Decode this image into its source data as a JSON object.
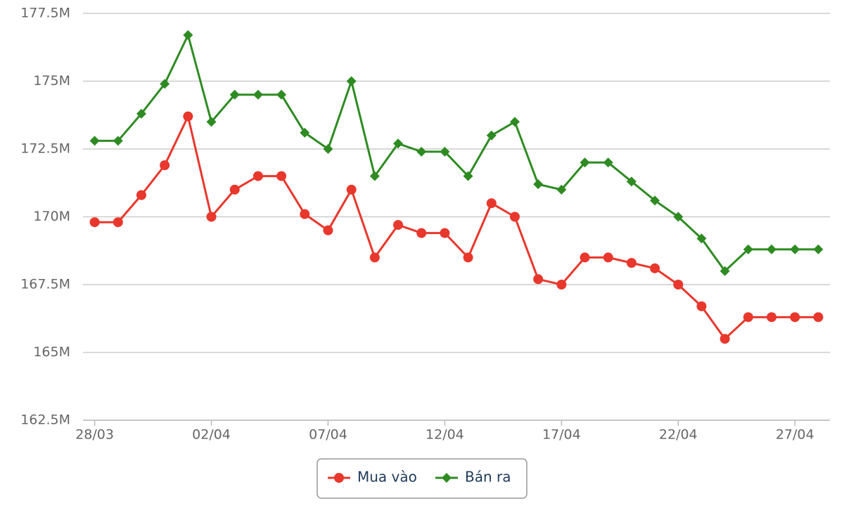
{
  "chart_data": {
    "type": "line",
    "categories": [
      "28/03",
      null,
      null,
      null,
      null,
      "02/04",
      null,
      null,
      null,
      null,
      "07/04",
      null,
      null,
      null,
      null,
      "12/04",
      null,
      null,
      null,
      null,
      "17/04",
      null,
      null,
      null,
      null,
      "22/04",
      null,
      null,
      null,
      null,
      "27/04",
      null
    ],
    "series": [
      {
        "name": "Mua vào",
        "color": "#e8372c",
        "marker": "circle",
        "values": [
          169800000,
          169800000,
          170800000,
          171900000,
          173700000,
          170000000,
          171000000,
          171500000,
          171500000,
          170100000,
          169500000,
          171000000,
          168500000,
          169700000,
          169400000,
          169400000,
          168500000,
          170500000,
          170000000,
          167700000,
          167500000,
          168500000,
          168500000,
          168300000,
          168100000,
          167500000,
          166700000,
          165500000,
          166300000,
          166300000,
          166300000,
          166300000
        ]
      },
      {
        "name": "Bán ra",
        "color": "#2e8b22",
        "marker": "diamond",
        "values": [
          172800000,
          172800000,
          173800000,
          174900000,
          176700000,
          173500000,
          174500000,
          174500000,
          174500000,
          173100000,
          172500000,
          175000000,
          171500000,
          172700000,
          172400000,
          172400000,
          171500000,
          173000000,
          173500000,
          171200000,
          171000000,
          172000000,
          172000000,
          171300000,
          170600000,
          170000000,
          169200000,
          168000000,
          168800000,
          168800000,
          168800000,
          168800000
        ]
      }
    ],
    "ylim": [
      162500000,
      177500000
    ],
    "yticks": [
      {
        "value": 162500000,
        "label": "162.5M"
      },
      {
        "value": 165000000,
        "label": "165M"
      },
      {
        "value": 167500000,
        "label": "167.5M"
      },
      {
        "value": 170000000,
        "label": "170M"
      },
      {
        "value": 172500000,
        "label": "172.5M"
      },
      {
        "value": 175000000,
        "label": "175M"
      },
      {
        "value": 177500000,
        "label": "177.5M"
      }
    ],
    "grid": true
  }
}
